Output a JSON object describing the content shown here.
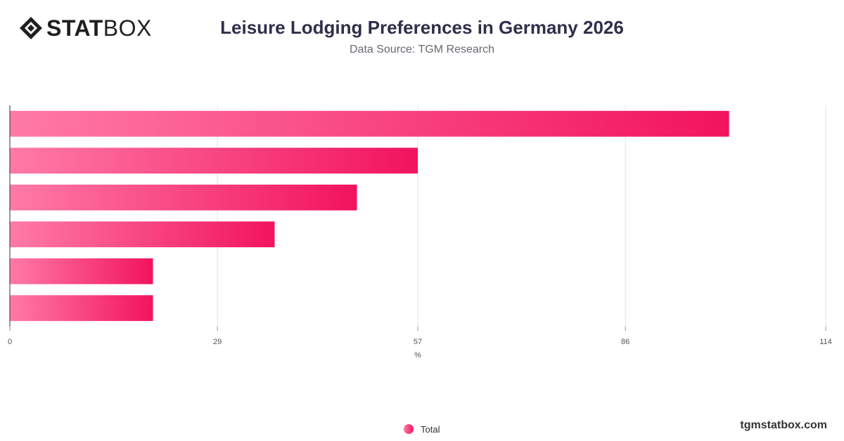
{
  "header": {
    "brand_bold": "STAT",
    "brand_light": "BOX",
    "title": "Leisure Lodging Preferences in Germany 2026",
    "subtitle": "Data Source: TGM Research"
  },
  "footer": {
    "site": "tgmstatbox.com"
  },
  "colors": {
    "bar_start": "#ff7aa6",
    "bar_end": "#f2135f",
    "grid": "#e3e3e3",
    "axis": "#333333"
  },
  "chart_data": {
    "type": "bar",
    "orientation": "horizontal",
    "categories": [
      "",
      "",
      "",
      "",
      "",
      ""
    ],
    "series": [
      {
        "name": "Total",
        "values": [
          100.5,
          57,
          48.5,
          37,
          20,
          20
        ]
      }
    ],
    "xlabel": "%",
    "ylabel": "",
    "xlim": [
      0,
      114
    ],
    "xticks": [
      "0",
      "29",
      "57",
      "86",
      "114"
    ],
    "grid": true,
    "legend": "bottom-center"
  }
}
